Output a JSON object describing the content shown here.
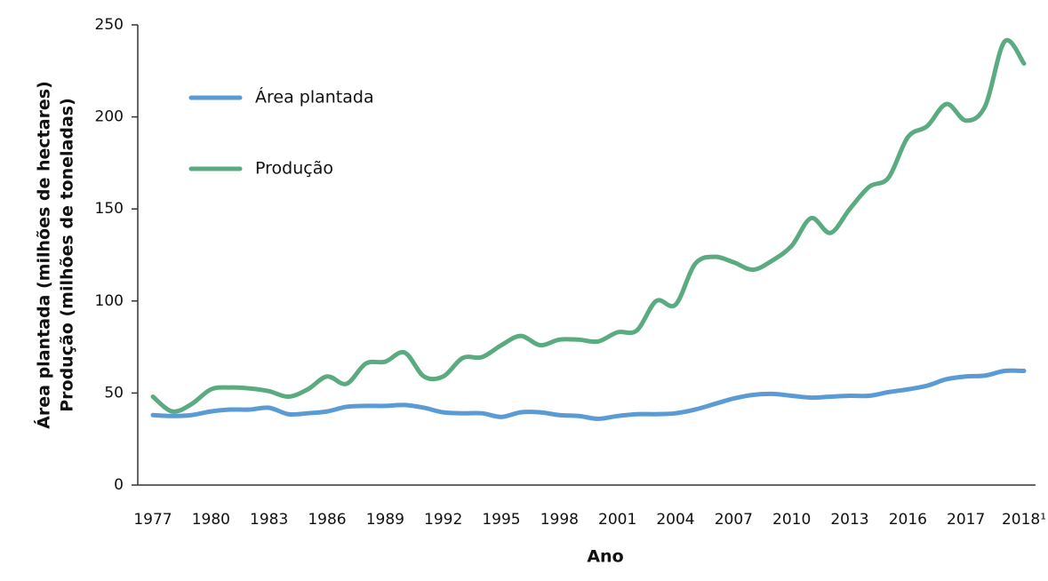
{
  "chart_data": {
    "type": "line",
    "ylabel": [
      "Área plantada (milhões de hectares)",
      "Produção (milhões de toneladas)"
    ],
    "xlabel": "Ano",
    "categories": [
      "1977",
      null,
      null,
      "1980",
      null,
      null,
      "1983",
      null,
      null,
      "1986",
      null,
      null,
      "1989",
      null,
      null,
      "1992",
      null,
      null,
      "1995",
      null,
      null,
      "1998",
      null,
      null,
      "2001",
      null,
      null,
      "2004",
      null,
      null,
      "2007",
      null,
      null,
      "2010",
      null,
      null,
      "2013",
      null,
      null,
      "2016",
      null,
      null,
      "2017",
      null,
      null,
      "2018¹"
    ],
    "series": [
      {
        "name": "Área plantada",
        "color": "#5b9bd5",
        "values": [
          38,
          37.5,
          38,
          40,
          41,
          41,
          42,
          38.5,
          39,
          40,
          42.5,
          43,
          43,
          43.5,
          42,
          39.5,
          39,
          39,
          37,
          39.5,
          39.5,
          38,
          37.5,
          36,
          37.5,
          38.5,
          38.5,
          39,
          41,
          44,
          47,
          49,
          49.5,
          48.5,
          47.5,
          48,
          48.5,
          48.5,
          50.5,
          52,
          54,
          57.5,
          59,
          59.5,
          62,
          62
        ]
      },
      {
        "name": "Produção",
        "color": "#5aab80",
        "values": [
          48,
          40,
          44,
          52,
          53,
          52.5,
          51,
          48,
          52,
          59,
          55,
          66,
          67,
          72,
          59,
          59,
          69,
          69.5,
          76,
          81,
          76,
          79,
          79,
          78,
          83,
          84,
          100,
          98,
          120,
          124,
          121,
          117,
          122,
          130,
          145,
          137,
          150,
          162,
          167,
          189,
          195,
          207,
          198,
          206,
          241,
          229
        ]
      }
    ],
    "ylim": [
      0,
      250
    ],
    "yticks": [
      0,
      50,
      100,
      150,
      200,
      250
    ],
    "legend": "upper-left"
  }
}
